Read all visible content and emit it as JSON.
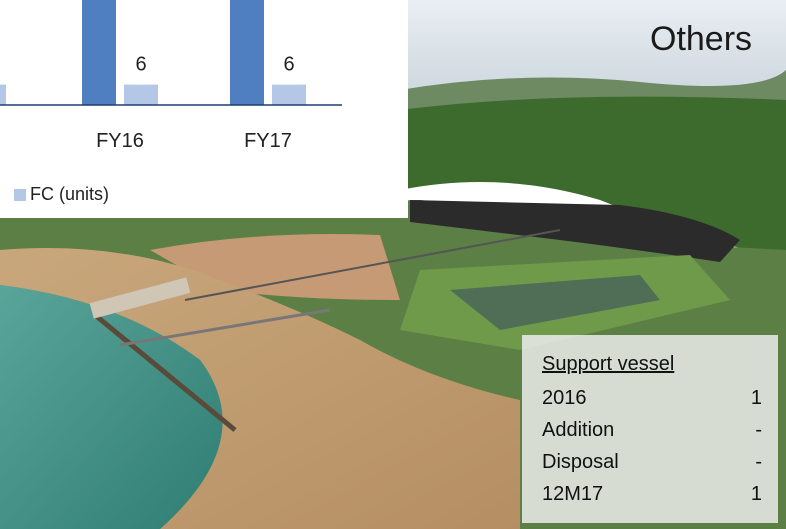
{
  "chart_data": {
    "type": "bar",
    "categories": [
      "FY16",
      "FY17"
    ],
    "series": [
      {
        "name": "",
        "values": [
          null,
          null
        ],
        "color": "#4f7fc0"
      },
      {
        "name": "FC (units)",
        "values": [
          6,
          6
        ],
        "color": "#b4c7e7"
      }
    ],
    "data_labels": [
      "6",
      "6"
    ],
    "legend": [
      "FC (units)"
    ],
    "legend_position": "bottom",
    "note": ""
  },
  "others_heading": "Others",
  "support_vessel": {
    "title": "Support vessel",
    "rows": [
      {
        "label": "2016",
        "value": "1"
      },
      {
        "label": "Addition",
        "value": "-"
      },
      {
        "label": "Disposal",
        "value": "-"
      },
      {
        "label": "12M17",
        "value": "1"
      }
    ]
  },
  "colors": {
    "bar_dark": "#4f7fc0",
    "bar_light": "#b4c7e7",
    "sea": "#3f8f86",
    "forest": "#3d6b2e"
  }
}
